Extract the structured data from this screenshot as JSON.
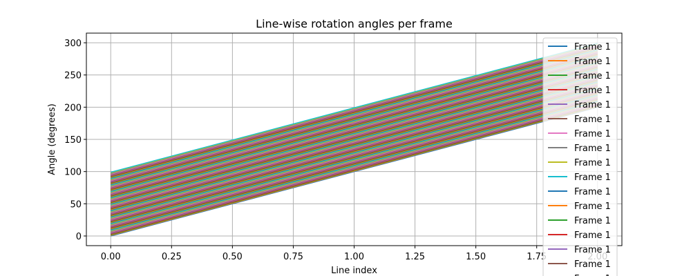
{
  "chart_data": {
    "type": "line",
    "title": "Line-wise rotation angles per frame",
    "xlabel": "Line index",
    "ylabel": "Angle (degrees)",
    "x": [
      0,
      1,
      2
    ],
    "xlim": [
      -0.1,
      2.1
    ],
    "ylim": [
      -15,
      315
    ],
    "xticks": [
      0.0,
      0.25,
      0.5,
      0.75,
      1.0,
      1.25,
      1.5,
      1.75,
      2.0
    ],
    "xtick_labels": [
      "0.00",
      "0.25",
      "0.50",
      "0.75",
      "1.00",
      "1.25",
      "1.50",
      "1.75",
      "2.00"
    ],
    "yticks": [
      0,
      50,
      100,
      150,
      200,
      250,
      300
    ],
    "ytick_labels": [
      "0",
      "50",
      "100",
      "150",
      "200",
      "250",
      "300"
    ],
    "grid": true,
    "legend_position": "top-right",
    "series_count": 100,
    "series_label": "Frame 1",
    "series_rule": "series k (k = 0..99): y = k + 100 * x",
    "visible_legend_entries": 17,
    "palette": [
      "#1f77b4",
      "#ff7f0e",
      "#2ca02c",
      "#d62728",
      "#9467bd",
      "#8c564b",
      "#e377c2",
      "#7f7f7f",
      "#bcbd22",
      "#17becf"
    ]
  }
}
